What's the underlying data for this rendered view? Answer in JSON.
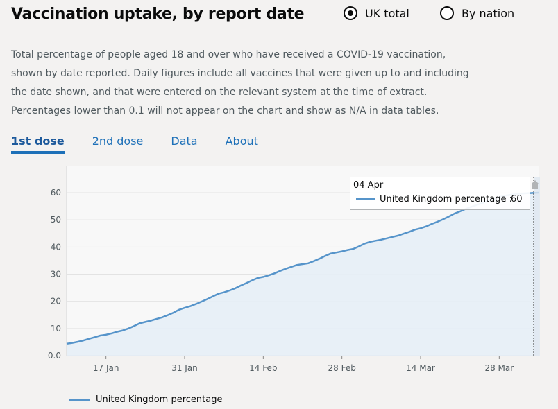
{
  "header": {
    "title": "Vaccination uptake, by report date",
    "radios": [
      {
        "label": "UK total",
        "checked": true
      },
      {
        "label": "By nation",
        "checked": false
      }
    ]
  },
  "description": "Total percentage of people aged 18 and over who have received a COVID-19 vaccination, shown by date reported. Daily figures include all vaccines that were given up to and including the date shown, and that were entered on the relevant system at the time of extract. Percentages lower than 0.1 will not appear on the chart and show as N/A in data tables.",
  "tabs": [
    {
      "label": "1st dose",
      "active": true
    },
    {
      "label": "2nd dose",
      "active": false
    },
    {
      "label": "Data",
      "active": false
    },
    {
      "label": "About",
      "active": false
    }
  ],
  "tooltip": {
    "date": "04 Apr",
    "series_label": "United Kingdom percentage :",
    "value": "60"
  },
  "colors": {
    "line": "#5694ca",
    "fill": "#e6eef6",
    "link": "#1d70b8"
  },
  "chart_data": {
    "type": "area",
    "ylim": [
      0,
      60
    ],
    "y_ticks": [
      "0.0",
      "10",
      "20",
      "30",
      "40",
      "50",
      "60"
    ],
    "x_ticks": [
      {
        "label": "17 Jan",
        "day": 17
      },
      {
        "label": "31 Jan",
        "day": 31
      },
      {
        "label": "14 Feb",
        "day": 45
      },
      {
        "label": "28 Feb",
        "day": 59
      },
      {
        "label": "14 Mar",
        "day": 73
      },
      {
        "label": "28 Mar",
        "day": 87
      }
    ],
    "x_range_days": [
      10,
      94
    ],
    "series": [
      {
        "name": "United Kingdom percentage",
        "points": [
          [
            10,
            4.4
          ],
          [
            11,
            4.7
          ],
          [
            12,
            5.1
          ],
          [
            13,
            5.6
          ],
          [
            14,
            6.2
          ],
          [
            15,
            6.8
          ],
          [
            16,
            7.4
          ],
          [
            17,
            7.7
          ],
          [
            18,
            8.2
          ],
          [
            19,
            8.8
          ],
          [
            20,
            9.3
          ],
          [
            21,
            10.0
          ],
          [
            22,
            10.9
          ],
          [
            23,
            11.9
          ],
          [
            24,
            12.4
          ],
          [
            25,
            12.9
          ],
          [
            26,
            13.5
          ],
          [
            27,
            14.1
          ],
          [
            28,
            14.9
          ],
          [
            29,
            15.8
          ],
          [
            30,
            16.9
          ],
          [
            31,
            17.6
          ],
          [
            32,
            18.2
          ],
          [
            33,
            19.0
          ],
          [
            34,
            19.9
          ],
          [
            35,
            20.8
          ],
          [
            36,
            21.8
          ],
          [
            37,
            22.8
          ],
          [
            38,
            23.3
          ],
          [
            39,
            24.0
          ],
          [
            40,
            24.8
          ],
          [
            41,
            25.8
          ],
          [
            42,
            26.7
          ],
          [
            43,
            27.7
          ],
          [
            44,
            28.6
          ],
          [
            45,
            29.0
          ],
          [
            46,
            29.6
          ],
          [
            47,
            30.3
          ],
          [
            48,
            31.2
          ],
          [
            49,
            32.0
          ],
          [
            50,
            32.7
          ],
          [
            51,
            33.4
          ],
          [
            52,
            33.7
          ],
          [
            53,
            34.0
          ],
          [
            54,
            34.8
          ],
          [
            55,
            35.7
          ],
          [
            56,
            36.7
          ],
          [
            57,
            37.6
          ],
          [
            58,
            38.0
          ],
          [
            59,
            38.4
          ],
          [
            60,
            38.9
          ],
          [
            61,
            39.3
          ],
          [
            62,
            40.2
          ],
          [
            63,
            41.2
          ],
          [
            64,
            41.9
          ],
          [
            65,
            42.3
          ],
          [
            66,
            42.7
          ],
          [
            67,
            43.2
          ],
          [
            68,
            43.7
          ],
          [
            69,
            44.2
          ],
          [
            70,
            44.9
          ],
          [
            71,
            45.6
          ],
          [
            72,
            46.4
          ],
          [
            73,
            46.9
          ],
          [
            74,
            47.6
          ],
          [
            75,
            48.5
          ],
          [
            76,
            49.3
          ],
          [
            77,
            50.2
          ],
          [
            78,
            51.2
          ],
          [
            79,
            52.3
          ],
          [
            80,
            53.1
          ],
          [
            81,
            54.0
          ],
          [
            82,
            54.8
          ],
          [
            83,
            55.5
          ],
          [
            84,
            56.2
          ],
          [
            85,
            57.0
          ],
          [
            86,
            57.8
          ],
          [
            87,
            58.4
          ],
          [
            88,
            58.9
          ],
          [
            89,
            59.2
          ],
          [
            90,
            59.5
          ],
          [
            91,
            59.7
          ],
          [
            92,
            59.8
          ],
          [
            93,
            59.9
          ],
          [
            94,
            60.0
          ]
        ]
      }
    ],
    "legend": "United Kingdom percentage",
    "grid": true,
    "legend_position": "bottom-left"
  }
}
